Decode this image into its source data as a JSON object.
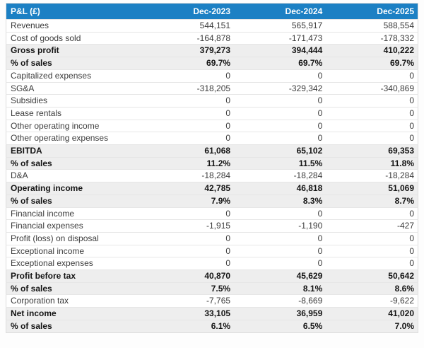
{
  "page": {
    "background": "#fdfdfd"
  },
  "colors": {
    "header_bg": "#1c80c4",
    "header_text": "#ffffff",
    "emphasis_row_bg": "#eeeeee",
    "row_bg": "#ffffff",
    "row_border": "#e6e6e6",
    "table_border": "#dcdcdc",
    "text": "#3c3c3c",
    "emphasis_text": "#141414"
  },
  "chart_data": {
    "type": "table",
    "title": "P&L (£)",
    "columns": [
      "P&L (£)",
      "Dec-2023",
      "Dec-2024",
      "Dec-2025"
    ],
    "rows": [
      {
        "label": "Revenues",
        "values": [
          "544,151",
          "565,917",
          "588,554"
        ],
        "emphasis": false
      },
      {
        "label": "Cost of goods sold",
        "values": [
          "-164,878",
          "-171,473",
          "-178,332"
        ],
        "emphasis": false
      },
      {
        "label": "Gross profit",
        "values": [
          "379,273",
          "394,444",
          "410,222"
        ],
        "emphasis": true
      },
      {
        "label": "% of sales",
        "values": [
          "69.7%",
          "69.7%",
          "69.7%"
        ],
        "emphasis": true
      },
      {
        "label": "Capitalized expenses",
        "values": [
          "0",
          "0",
          "0"
        ],
        "emphasis": false
      },
      {
        "label": "SG&A",
        "values": [
          "-318,205",
          "-329,342",
          "-340,869"
        ],
        "emphasis": false
      },
      {
        "label": "Subsidies",
        "values": [
          "0",
          "0",
          "0"
        ],
        "emphasis": false
      },
      {
        "label": "Lease rentals",
        "values": [
          "0",
          "0",
          "0"
        ],
        "emphasis": false
      },
      {
        "label": "Other operating income",
        "values": [
          "0",
          "0",
          "0"
        ],
        "emphasis": false
      },
      {
        "label": "Other operating expenses",
        "values": [
          "0",
          "0",
          "0"
        ],
        "emphasis": false
      },
      {
        "label": "EBITDA",
        "values": [
          "61,068",
          "65,102",
          "69,353"
        ],
        "emphasis": true
      },
      {
        "label": "% of sales",
        "values": [
          "11.2%",
          "11.5%",
          "11.8%"
        ],
        "emphasis": true
      },
      {
        "label": "D&A",
        "values": [
          "-18,284",
          "-18,284",
          "-18,284"
        ],
        "emphasis": false
      },
      {
        "label": "Operating income",
        "values": [
          "42,785",
          "46,818",
          "51,069"
        ],
        "emphasis": true
      },
      {
        "label": "% of sales",
        "values": [
          "7.9%",
          "8.3%",
          "8.7%"
        ],
        "emphasis": true
      },
      {
        "label": "Financial income",
        "values": [
          "0",
          "0",
          "0"
        ],
        "emphasis": false
      },
      {
        "label": "Financial expenses",
        "values": [
          "-1,915",
          "-1,190",
          "-427"
        ],
        "emphasis": false
      },
      {
        "label": "Profit (loss) on disposal",
        "values": [
          "0",
          "0",
          "0"
        ],
        "emphasis": false
      },
      {
        "label": "Exceptional income",
        "values": [
          "0",
          "0",
          "0"
        ],
        "emphasis": false
      },
      {
        "label": "Exceptional expenses",
        "values": [
          "0",
          "0",
          "0"
        ],
        "emphasis": false
      },
      {
        "label": "Profit before tax",
        "values": [
          "40,870",
          "45,629",
          "50,642"
        ],
        "emphasis": true
      },
      {
        "label": "% of sales",
        "values": [
          "7.5%",
          "8.1%",
          "8.6%"
        ],
        "emphasis": true
      },
      {
        "label": "Corporation tax",
        "values": [
          "-7,765",
          "-8,669",
          "-9,622"
        ],
        "emphasis": false
      },
      {
        "label": "Net income",
        "values": [
          "33,105",
          "36,959",
          "41,020"
        ],
        "emphasis": true
      },
      {
        "label": "% of sales",
        "values": [
          "6.1%",
          "6.5%",
          "7.0%"
        ],
        "emphasis": true
      }
    ]
  }
}
